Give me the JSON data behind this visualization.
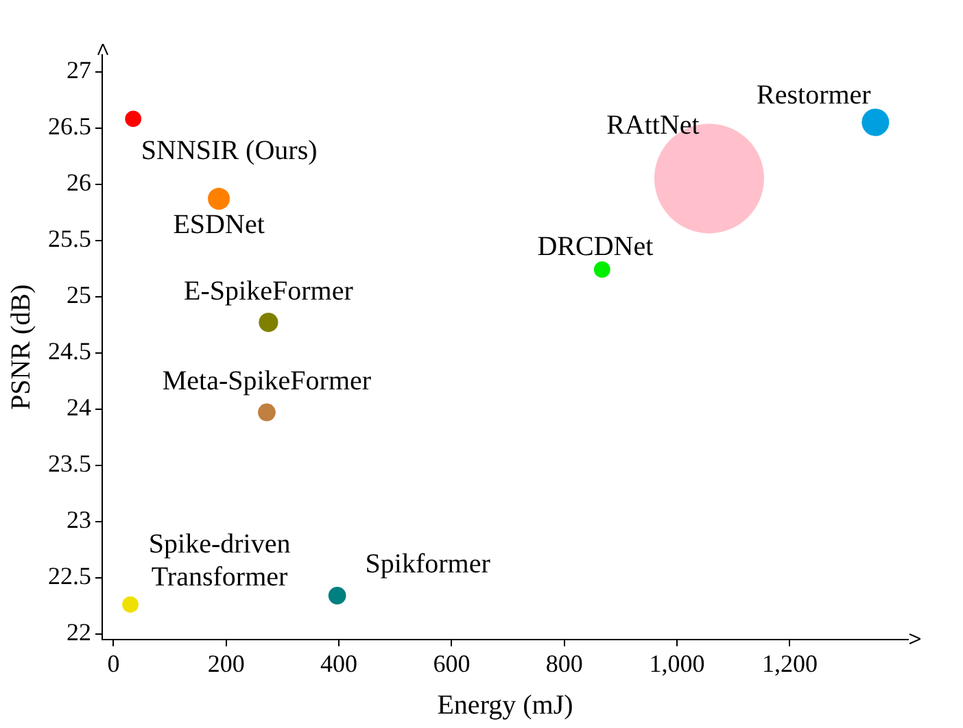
{
  "chart_data": {
    "type": "bubble",
    "xlabel": "Energy (mJ)",
    "ylabel": "PSNR (dB)",
    "xlim": [
      -20,
      1410
    ],
    "ylim": [
      21.95,
      27.15
    ],
    "xticks": [
      0,
      200,
      400,
      600,
      800,
      {
        "value": 1000,
        "label": "1,000"
      },
      {
        "value": 1200,
        "label": "1,200"
      }
    ],
    "yticks": [
      22,
      22.5,
      23,
      23.5,
      24,
      24.5,
      25,
      25.5,
      26,
      26.5,
      27
    ],
    "grid": false,
    "legend": false,
    "series": [
      {
        "name": "SNNSIR (Ours)",
        "color": "#ff0000",
        "x": [
          35
        ],
        "values": [
          26.58
        ],
        "sizes": [
          0.022
        ]
      },
      {
        "name": "ESDNet",
        "color": "#ff8000",
        "x": [
          187
        ],
        "values": [
          25.87
        ],
        "sizes": [
          0.04
        ]
      },
      {
        "name": "E-SpikeFormer",
        "color": "#808000",
        "x": [
          275
        ],
        "values": [
          24.77
        ],
        "sizes": [
          0.031
        ]
      },
      {
        "name": "Meta-SpikeFormer",
        "color": "#bf8040",
        "x": [
          272
        ],
        "values": [
          23.97
        ],
        "sizes": [
          0.026
        ]
      },
      {
        "name": "Spike-driven Transformer",
        "color": "#f0e000",
        "x": [
          30
        ],
        "values": [
          22.26
        ],
        "sizes": [
          0.022
        ]
      },
      {
        "name": "Spikformer",
        "color": "#008080",
        "x": [
          397
        ],
        "values": [
          22.34
        ],
        "sizes": [
          0.026
        ]
      },
      {
        "name": "DRCDNet",
        "color": "#00ee00",
        "x": [
          867
        ],
        "values": [
          25.24
        ],
        "sizes": [
          0.022
        ]
      },
      {
        "name": "RAttNet",
        "color": "#ffc0cb",
        "x": [
          1057
        ],
        "values": [
          26.05
        ],
        "sizes": [
          1
        ]
      },
      {
        "name": "Restormer",
        "color": "#00a0e0",
        "x": [
          1352
        ],
        "values": [
          26.55
        ],
        "sizes": [
          0.0625
        ]
      }
    ]
  }
}
